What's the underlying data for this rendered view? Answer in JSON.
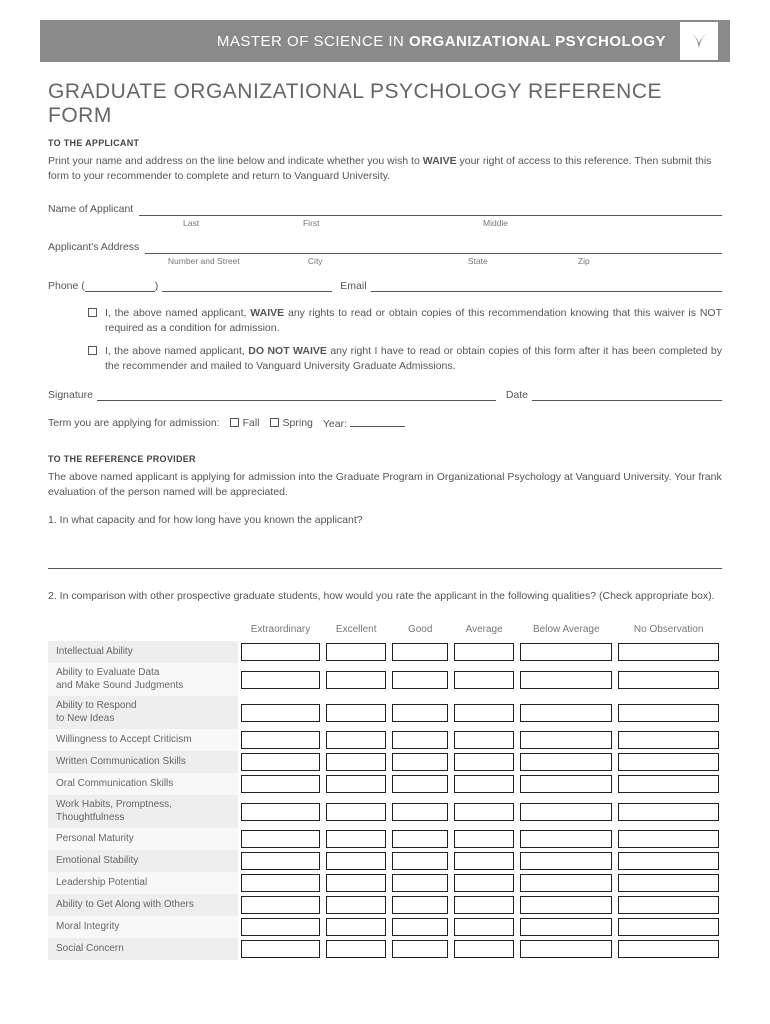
{
  "header": {
    "prefix": "MASTER OF SCIENCE IN ",
    "bold": "ORGANIZATIONAL PSYCHOLOGY"
  },
  "mainTitle": "GRADUATE ORGANIZATIONAL PSYCHOLOGY REFERENCE FORM",
  "toApplicant": {
    "heading": "TO THE APPLICANT",
    "intro1": "Print your name and address on the line below and indicate whether you wish to ",
    "waive": "WAIVE",
    "intro2": " your right of access to this reference. Then submit this form to your recommender to complete and return to Vanguard University."
  },
  "fields": {
    "nameLabel": "Name of Applicant",
    "nameSubs": {
      "last": "Last",
      "first": "First",
      "middle": "Middle"
    },
    "addrLabel": "Applicant's Address",
    "addrSubs": {
      "street": "Number and Street",
      "city": "City",
      "state": "State",
      "zip": "Zip"
    },
    "phoneLabel": "Phone (",
    "phoneClose": ")",
    "emailLabel": "Email"
  },
  "waiver": {
    "opt1_pre": "I, the above named applicant, ",
    "opt1_bold": "WAIVE",
    "opt1_post": " any rights to read or obtain copies of this recommendation knowing that this waiver is NOT required as a condition for admission.",
    "opt2_pre": "I, the above named applicant, ",
    "opt2_bold": "DO NOT WAIVE",
    "opt2_post": " any right I have to read or obtain copies of this form after it has been completed by the recommender and mailed to Vanguard University Graduate Admissions."
  },
  "signature": {
    "sigLabel": "Signature",
    "dateLabel": "Date"
  },
  "term": {
    "label": "Term you are applying for admission:",
    "fall": "Fall",
    "spring": "Spring",
    "year": "Year:"
  },
  "toReference": {
    "heading": "TO THE REFERENCE PROVIDER",
    "intro": "The above named applicant is applying for admission into the Graduate Program in Organizational Psychology at Vanguard University. Your frank evaluation of the person named will be appreciated.",
    "q1": "1. In what capacity and for how long have you known the applicant?",
    "q2": "2. In comparison with other prospective graduate students, how would you rate the applicant in the following qualities? (Check appropriate box)."
  },
  "ratingTable": {
    "columns": [
      "Extraordinary",
      "Excellent",
      "Good",
      "Average",
      "Below Average",
      "No Observation"
    ],
    "rows": [
      "Intellectual Ability",
      "Ability to Evaluate Data\nand Make Sound Judgments",
      "Ability to Respond\nto New Ideas",
      "Willingness to Accept Criticism",
      "Written Communication Skills",
      "Oral Communication Skills",
      "Work Habits, Promptness,\nThoughtfulness",
      "Personal Maturity",
      "Emotional Stability",
      "Leadership Potential",
      "Ability to Get Along with Others",
      "Moral Integrity",
      "Social Concern"
    ]
  }
}
